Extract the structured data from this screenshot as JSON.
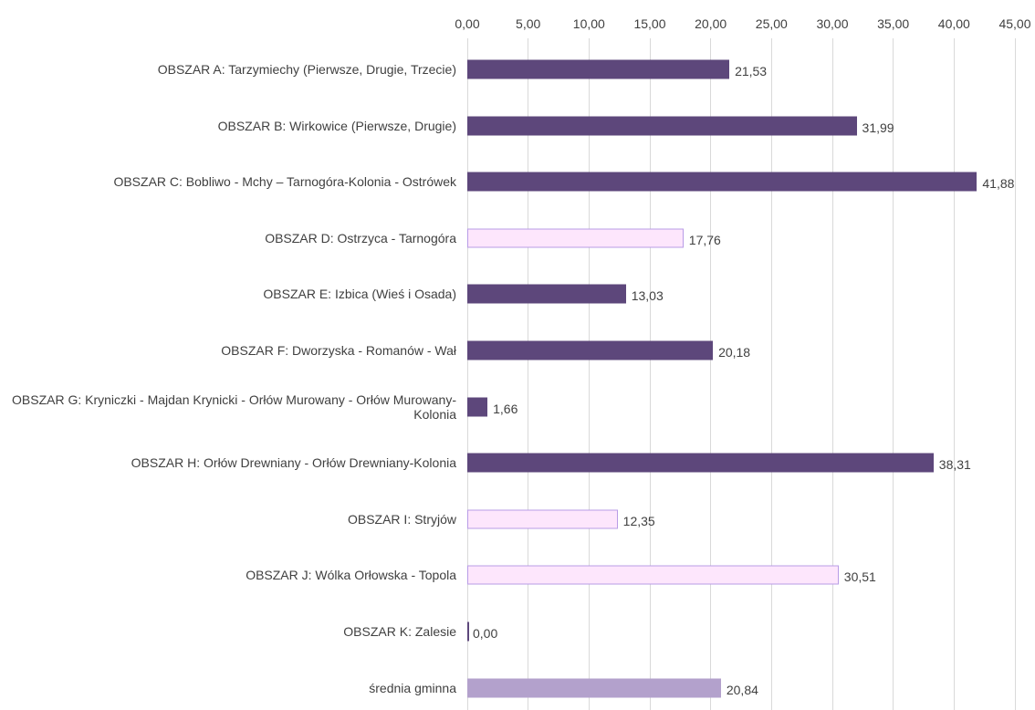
{
  "chart_data": {
    "type": "barh",
    "categories": [
      "OBSZAR A: Tarzymiechy (Pierwsze, Drugie, Trzecie)",
      "OBSZAR B: Wirkowice (Pierwsze, Drugie)",
      "OBSZAR C: Bobliwo - Mchy – Tarnogóra-Kolonia - Ostrówek",
      "OBSZAR D: Ostrzyca - Tarnogóra",
      "OBSZAR E: Izbica (Wieś i Osada)",
      "OBSZAR F: Dworzyska - Romanów - Wał",
      "OBSZAR G: Kryniczki - Majdan Krynicki - Orłów Murowany - Orłów Murowany-Kolonia",
      "OBSZAR H: Orłów Drewniany - Orłów Drewniany-Kolonia",
      "OBSZAR I: Stryjów",
      "OBSZAR J: Wólka Orłowska - Topola",
      "OBSZAR K: Zalesie",
      "średnia gminna"
    ],
    "values": [
      21.53,
      31.99,
      41.88,
      17.76,
      13.03,
      20.18,
      1.66,
      38.31,
      12.35,
      30.51,
      0.0,
      20.84
    ],
    "value_labels": [
      "21,53",
      "31,99",
      "41,88",
      "17,76",
      "13,03",
      "20,18",
      "1,66",
      "38,31",
      "12,35",
      "30,51",
      "0,00",
      "20,84"
    ],
    "colors": [
      "#5d477b",
      "#5d477b",
      "#5d477b",
      "#fde6fc",
      "#5d477b",
      "#5d477b",
      "#5d477b",
      "#5d477b",
      "#fde6fc",
      "#fde6fc",
      "#5d477b",
      "#b3a1cc"
    ],
    "xlim": [
      0,
      45
    ],
    "xticks": [
      {
        "value": 0,
        "label": "0,00"
      },
      {
        "value": 5,
        "label": "5,00"
      },
      {
        "value": 10,
        "label": "10,00"
      },
      {
        "value": 15,
        "label": "15,00"
      },
      {
        "value": 20,
        "label": "20,00"
      },
      {
        "value": 25,
        "label": "25,00"
      },
      {
        "value": 30,
        "label": "30,00"
      },
      {
        "value": 35,
        "label": "35,00"
      },
      {
        "value": 40,
        "label": "40,00"
      },
      {
        "value": 45,
        "label": "45,00"
      }
    ],
    "grid": true
  }
}
